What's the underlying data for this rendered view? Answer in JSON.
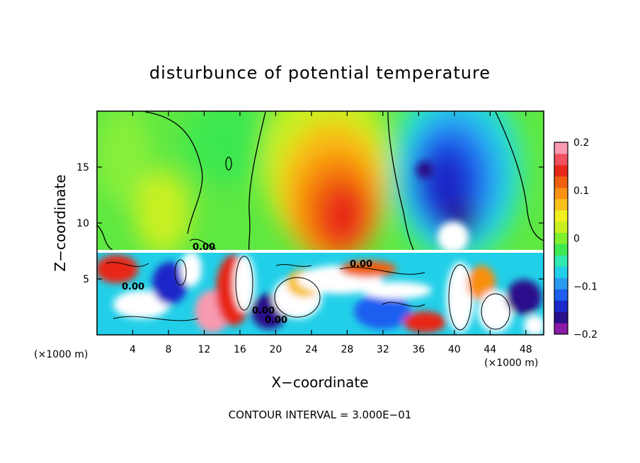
{
  "chart_data": {
    "type": "heatmap",
    "title": "disturbunce of potential temperature",
    "xlabel": "X−coordinate",
    "ylabel": "Z−coordinate",
    "x_unit_left": "(×1000 m)",
    "x_unit_right": "(×1000 m)",
    "xlim": [
      0,
      50
    ],
    "ylim": [
      0,
      20
    ],
    "x_ticks": [
      "4",
      "8",
      "12",
      "16",
      "20",
      "24",
      "28",
      "32",
      "36",
      "40",
      "44",
      "48"
    ],
    "y_ticks": [
      "5",
      "10",
      "15"
    ],
    "x_tick_values": [
      4,
      8,
      12,
      16,
      20,
      24,
      28,
      32,
      36,
      40,
      44,
      48
    ],
    "y_tick_values": [
      5,
      10,
      15
    ],
    "colorbar": {
      "min": -0.2,
      "max": 0.2,
      "tick_labels": [
        "0.2",
        "0.1",
        "0",
        "−0.1",
        "−0.2"
      ],
      "tick_values": [
        0.2,
        0.1,
        0,
        -0.1,
        -0.2
      ],
      "colors": [
        "#8a1aa6",
        "#2a0f8a",
        "#1a28c8",
        "#1e5ef0",
        "#2a9bf0",
        "#22cfe8",
        "#30e8b0",
        "#3ee850",
        "#7ef030",
        "#c8f020",
        "#f0f020",
        "#f8c018",
        "#f89010",
        "#f06010",
        "#e82818",
        "#f05060",
        "#f89ab0"
      ]
    },
    "contour_labels": [
      "0.00",
      "0.00",
      "0.00",
      "0.00",
      "0.00"
    ],
    "footer": "CONTOUR INTERVAL = 3.000E−01"
  }
}
